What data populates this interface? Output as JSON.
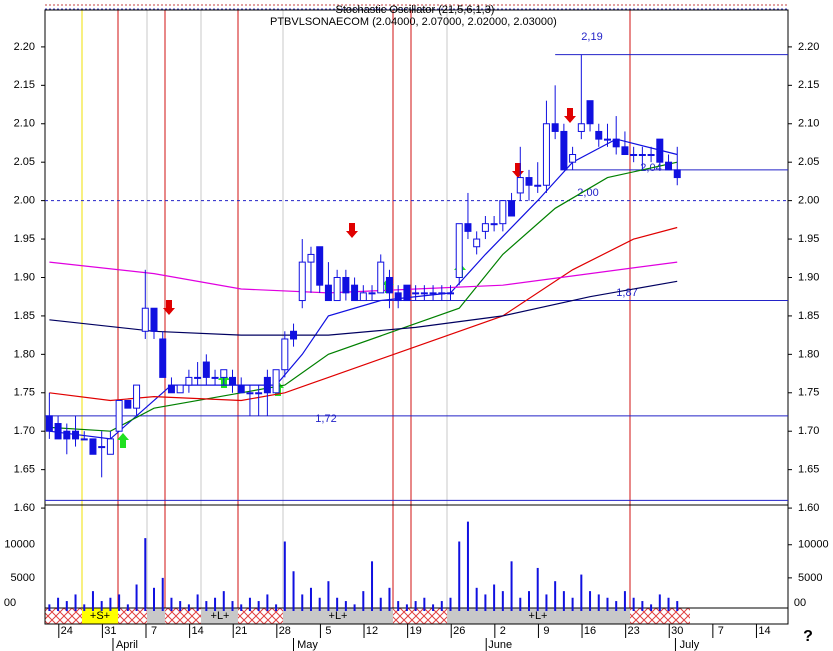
{
  "chart_data": {
    "type": "candlestick",
    "title": "PTBVLSONAECOM (2.04000, 2.07000, 2.02000, 2.03000)",
    "subtitle": "Stochastic Oscillator (21,5,6,1,3)",
    "up_color": "#ffffff",
    "down_color": "#1010e0",
    "edge_color": "#1010e0",
    "x": [
      -2,
      -1,
      0,
      1,
      2,
      3,
      4,
      5,
      6,
      7,
      8,
      9,
      10,
      11,
      12,
      13,
      14,
      15,
      16,
      17,
      18,
      19,
      20,
      21,
      22,
      23,
      24,
      25,
      26,
      27,
      28,
      29,
      30,
      31,
      32,
      33,
      34,
      35,
      36,
      37,
      38,
      39,
      40,
      41,
      42,
      43,
      44,
      45,
      46,
      47,
      48,
      49,
      50,
      51,
      52,
      53,
      54,
      55,
      56,
      57,
      58,
      59,
      60,
      61,
      62,
      63,
      64,
      65,
      66,
      67,
      68,
      69,
      70
    ],
    "open": [
      1.72,
      1.71,
      1.7,
      1.7,
      1.69,
      1.69,
      1.68,
      1.67,
      1.7,
      1.74,
      1.73,
      1.83,
      1.86,
      1.82,
      1.76,
      1.75,
      1.76,
      1.77,
      1.79,
      1.77,
      1.77,
      1.77,
      1.76,
      1.75,
      1.75,
      1.77,
      1.75,
      1.78,
      1.83,
      1.87,
      1.92,
      1.94,
      1.89,
      1.87,
      1.9,
      1.89,
      1.87,
      1.88,
      1.88,
      1.9,
      1.88,
      1.89,
      1.88,
      1.88,
      1.88,
      1.88,
      1.88,
      1.9,
      1.97,
      1.94,
      1.96,
      1.97,
      1.97,
      2.0,
      2.01,
      2.03,
      2.02,
      2.02,
      2.1,
      2.09,
      2.05,
      2.09,
      2.13,
      2.09,
      2.08,
      2.08,
      2.07,
      2.06,
      2.06,
      2.06,
      2.08,
      2.05,
      2.04
    ],
    "high": [
      1.75,
      1.72,
      1.71,
      1.72,
      1.7,
      1.69,
      1.7,
      1.7,
      1.74,
      1.74,
      1.76,
      1.91,
      1.86,
      1.83,
      1.77,
      1.76,
      1.78,
      1.79,
      1.8,
      1.78,
      1.78,
      1.78,
      1.77,
      1.76,
      1.76,
      1.78,
      1.78,
      1.83,
      1.84,
      1.95,
      1.94,
      1.94,
      1.92,
      1.91,
      1.91,
      1.9,
      1.89,
      1.89,
      1.93,
      1.91,
      1.89,
      1.89,
      1.89,
      1.89,
      1.89,
      1.89,
      1.89,
      1.97,
      2.01,
      1.96,
      1.98,
      1.98,
      2.0,
      2.01,
      2.07,
      2.04,
      2.05,
      2.13,
      2.15,
      2.1,
      2.07,
      2.19,
      2.13,
      2.1,
      2.1,
      2.11,
      2.09,
      2.07,
      2.07,
      2.07,
      2.08,
      2.06,
      2.07
    ],
    "low": [
      1.69,
      1.69,
      1.67,
      1.68,
      1.69,
      1.67,
      1.64,
      1.67,
      1.7,
      1.73,
      1.72,
      1.82,
      1.82,
      1.77,
      1.75,
      1.75,
      1.75,
      1.76,
      1.76,
      1.76,
      1.76,
      1.75,
      1.75,
      1.72,
      1.72,
      1.72,
      1.75,
      1.77,
      1.81,
      1.86,
      1.88,
      1.88,
      1.87,
      1.87,
      1.87,
      1.87,
      1.87,
      1.87,
      1.88,
      1.86,
      1.86,
      1.87,
      1.87,
      1.87,
      1.87,
      1.87,
      1.87,
      1.89,
      1.95,
      1.93,
      1.95,
      1.96,
      1.96,
      1.98,
      2.0,
      2.0,
      2.01,
      2.01,
      2.08,
      2.04,
      2.04,
      2.08,
      2.09,
      2.07,
      2.07,
      2.06,
      2.06,
      2.05,
      2.04,
      2.05,
      2.04,
      2.04,
      2.02
    ],
    "close": [
      1.7,
      1.69,
      1.69,
      1.69,
      1.69,
      1.67,
      1.68,
      1.69,
      1.74,
      1.73,
      1.76,
      1.86,
      1.83,
      1.77,
      1.75,
      1.76,
      1.77,
      1.77,
      1.77,
      1.77,
      1.78,
      1.76,
      1.75,
      1.75,
      1.75,
      1.75,
      1.78,
      1.82,
      1.82,
      1.92,
      1.93,
      1.89,
      1.87,
      1.9,
      1.88,
      1.87,
      1.88,
      1.88,
      1.92,
      1.88,
      1.87,
      1.87,
      1.88,
      1.88,
      1.88,
      1.88,
      1.88,
      1.97,
      1.96,
      1.95,
      1.97,
      1.97,
      2.0,
      1.98,
      2.03,
      2.02,
      2.02,
      2.1,
      2.09,
      2.04,
      2.06,
      2.1,
      2.1,
      2.08,
      2.08,
      2.07,
      2.06,
      2.06,
      2.06,
      2.06,
      2.05,
      2.04,
      2.03
    ],
    "volume": {
      "color": "#1010e0",
      "ylim": [
        0,
        16000
      ],
      "yticks": [
        5000,
        10000
      ],
      "values": [
        1000,
        2000,
        1500,
        2500,
        1000,
        3000,
        1500,
        2000,
        2500,
        1000,
        4000,
        11000,
        3500,
        5000,
        2000,
        1500,
        1000,
        2500,
        1500,
        2000,
        3000,
        1500,
        1000,
        2000,
        1500,
        2500,
        1000,
        10500,
        6000,
        2500,
        3500,
        2000,
        4500,
        2000,
        1500,
        1000,
        3000,
        7500,
        2000,
        3500,
        1500,
        1000,
        1500,
        2000,
        1000,
        1500,
        2000,
        10500,
        13500,
        3500,
        2500,
        4000,
        3000,
        7500,
        2000,
        3000,
        6500,
        2500,
        4500,
        3000,
        2000,
        5500,
        3000,
        2500,
        2000,
        1500,
        3000,
        2000,
        1500,
        1000,
        2500,
        2000,
        1500
      ]
    },
    "series": [
      {
        "color": "#1010e0",
        "x": [
          -2,
          5,
          8,
          12,
          20,
          24,
          27,
          30,
          36,
          44,
          48,
          54,
          58,
          63,
          70
        ],
        "values": [
          1.7,
          1.69,
          1.72,
          1.76,
          1.76,
          1.76,
          1.8,
          1.85,
          1.87,
          1.88,
          1.93,
          2.0,
          2.05,
          2.08,
          2.06
        ]
      },
      {
        "color": "#008000",
        "x": [
          -2,
          5,
          10,
          20,
          25,
          30,
          40,
          45,
          50,
          56,
          62,
          70
        ],
        "values": [
          1.705,
          1.7,
          1.73,
          1.75,
          1.76,
          1.8,
          1.84,
          1.86,
          1.93,
          1.99,
          2.03,
          2.05
        ]
      },
      {
        "color": "#e00000",
        "x": [
          -2,
          5,
          10,
          20,
          25,
          30,
          40,
          50,
          58,
          65,
          70
        ],
        "values": [
          1.75,
          1.74,
          1.745,
          1.74,
          1.75,
          1.77,
          1.81,
          1.85,
          1.91,
          1.95,
          1.965
        ]
      },
      {
        "color": "#e000e0",
        "x": [
          -2,
          10,
          20,
          30,
          40,
          50,
          60,
          70
        ],
        "values": [
          1.92,
          1.905,
          1.885,
          1.88,
          1.885,
          1.89,
          1.905,
          1.92
        ]
      },
      {
        "color": "#000060",
        "x": [
          -2,
          10,
          20,
          30,
          40,
          50,
          60,
          70
        ],
        "values": [
          1.845,
          1.83,
          1.825,
          1.825,
          1.835,
          1.85,
          1.875,
          1.895
        ]
      }
    ],
    "levels": [
      {
        "value": 2.19,
        "label": "2,19",
        "from": 56
      },
      {
        "value": 2.04,
        "label": "2,04",
        "from": 57
      },
      {
        "value": 2.0,
        "label": "2,00",
        "style": "dashed"
      },
      {
        "value": 1.87,
        "label": "1,87",
        "from": 33
      },
      {
        "value": 1.72,
        "label": "1,72"
      },
      {
        "value": 1.61
      }
    ],
    "xlim": [
      -2.5,
      82.7
    ],
    "ylim": [
      1.604,
      2.248
    ],
    "yticks": [
      {
        "value": 1.6,
        "label": "1.60"
      },
      1.65,
      {
        "value": 1.7,
        "label": "1.70"
      },
      1.75,
      {
        "value": 1.8,
        "label": "1.80"
      },
      1.85,
      {
        "value": 1.9,
        "label": "1.90"
      },
      1.95,
      {
        "value": 2.0,
        "label": "2.00"
      },
      2.05,
      {
        "value": 2.1,
        "label": "2.10"
      },
      2.15,
      {
        "value": 2.2,
        "label": "2.20"
      }
    ],
    "xticks": [
      {
        "value": 0,
        "label": "24"
      },
      {
        "value": 5,
        "label": "31"
      },
      {
        "value": 10,
        "label": "7"
      },
      {
        "value": 15,
        "label": "14"
      },
      {
        "value": 20,
        "label": "21"
      },
      {
        "value": 25,
        "label": "28"
      },
      {
        "value": 30,
        "label": "5"
      },
      {
        "value": 35,
        "label": "12"
      },
      {
        "value": 40,
        "label": "19"
      },
      {
        "value": 45,
        "label": "26"
      },
      {
        "value": 50,
        "label": "2"
      },
      {
        "value": 55,
        "label": "9"
      },
      {
        "value": 60,
        "label": "16"
      },
      {
        "value": 65,
        "label": "23"
      },
      {
        "value": 70,
        "label": "30"
      },
      {
        "value": 75,
        "label": "7"
      },
      {
        "value": 80,
        "label": "14"
      }
    ],
    "month_ticks": [
      {
        "value": 6.9,
        "label": "April"
      },
      {
        "value": 27.6,
        "label": "May"
      },
      {
        "value": 49.7,
        "label": "June"
      },
      {
        "value": 71.4,
        "label": "July"
      }
    ],
    "markers": [
      "+S+",
      "+L+",
      "+L+",
      "+L+"
    ],
    "corner_label": "00",
    "help": "?"
  }
}
